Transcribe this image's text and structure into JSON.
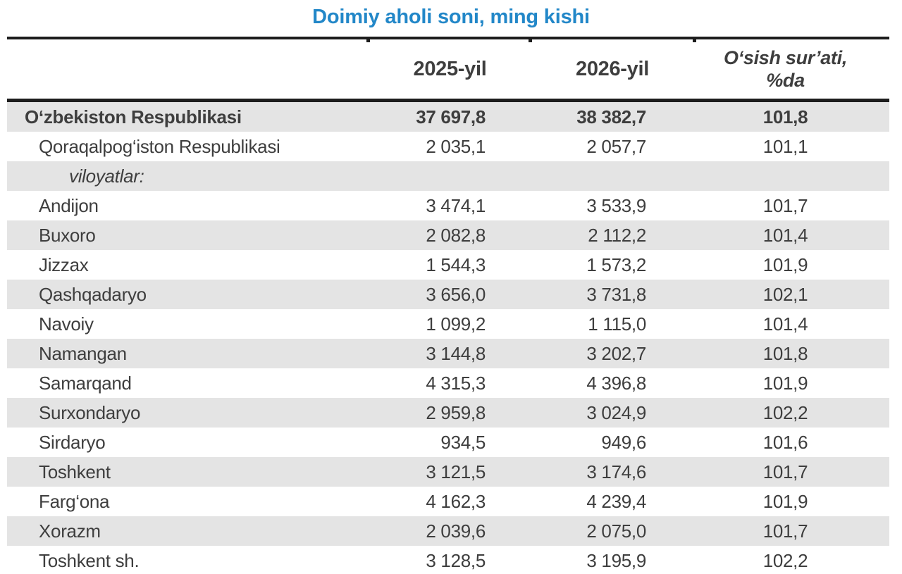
{
  "title": "Doimiy aholi soni, ming kishi",
  "table": {
    "columns": {
      "region": "",
      "year1": "2025-yil",
      "year2": "2026-yil",
      "growth": "O‘sish sur’ati,\n%da"
    },
    "rows": [
      {
        "name": "O‘zbekiston Respublikasi",
        "y2025": "37 697,8",
        "y2026": "38 382,7",
        "growth": "101,8",
        "style": "total",
        "shaded": true
      },
      {
        "name": "Qoraqalpog‘iston Respublikasi",
        "y2025": "2 035,1",
        "y2026": "2 057,7",
        "growth": "101,1",
        "style": "sub",
        "shaded": false
      },
      {
        "name": "viloyatlar:",
        "y2025": "",
        "y2026": "",
        "growth": "",
        "style": "section",
        "shaded": true
      },
      {
        "name": "Andijon",
        "y2025": "3 474,1",
        "y2026": "3 533,9",
        "growth": "101,7",
        "style": "region",
        "shaded": false
      },
      {
        "name": "Buxoro",
        "y2025": "2 082,8",
        "y2026": "2 112,2",
        "growth": "101,4",
        "style": "region",
        "shaded": true
      },
      {
        "name": "Jizzax",
        "y2025": "1 544,3",
        "y2026": "1 573,2",
        "growth": "101,9",
        "style": "region",
        "shaded": false
      },
      {
        "name": "Qashqadaryo",
        "y2025": "3 656,0",
        "y2026": "3 731,8",
        "growth": "102,1",
        "style": "region",
        "shaded": true
      },
      {
        "name": "Navoiy",
        "y2025": "1 099,2",
        "y2026": "1 115,0",
        "growth": "101,4",
        "style": "region",
        "shaded": false
      },
      {
        "name": "Namangan",
        "y2025": "3 144,8",
        "y2026": "3 202,7",
        "growth": "101,8",
        "style": "region",
        "shaded": true
      },
      {
        "name": "Samarqand",
        "y2025": "4 315,3",
        "y2026": "4 396,8",
        "growth": "101,9",
        "style": "region",
        "shaded": false
      },
      {
        "name": "Surxondaryo",
        "y2025": "2 959,8",
        "y2026": "3 024,9",
        "growth": "102,2",
        "style": "region",
        "shaded": true
      },
      {
        "name": "Sirdaryo",
        "y2025": "934,5",
        "y2026": "949,6",
        "growth": "101,6",
        "style": "region",
        "shaded": false
      },
      {
        "name": "Toshkent",
        "y2025": "3 121,5",
        "y2026": "3 174,6",
        "growth": "101,7",
        "style": "region",
        "shaded": true
      },
      {
        "name": "Farg‘ona",
        "y2025": "4 162,3",
        "y2026": "4 239,4",
        "growth": "101,9",
        "style": "region",
        "shaded": false
      },
      {
        "name": "Xorazm",
        "y2025": "2 039,6",
        "y2026": "2 075,0",
        "growth": "101,7",
        "style": "region",
        "shaded": true
      },
      {
        "name": "Toshkent sh.",
        "y2025": "3 128,5",
        "y2026": "3 195,9",
        "growth": "102,2",
        "style": "region",
        "shaded": false
      }
    ]
  },
  "colors": {
    "title_blue": "#2287c8",
    "row_stripe": "#e4e4e4",
    "text_dark": "#3e3e3e",
    "rule_black": "#1d1d1d"
  }
}
